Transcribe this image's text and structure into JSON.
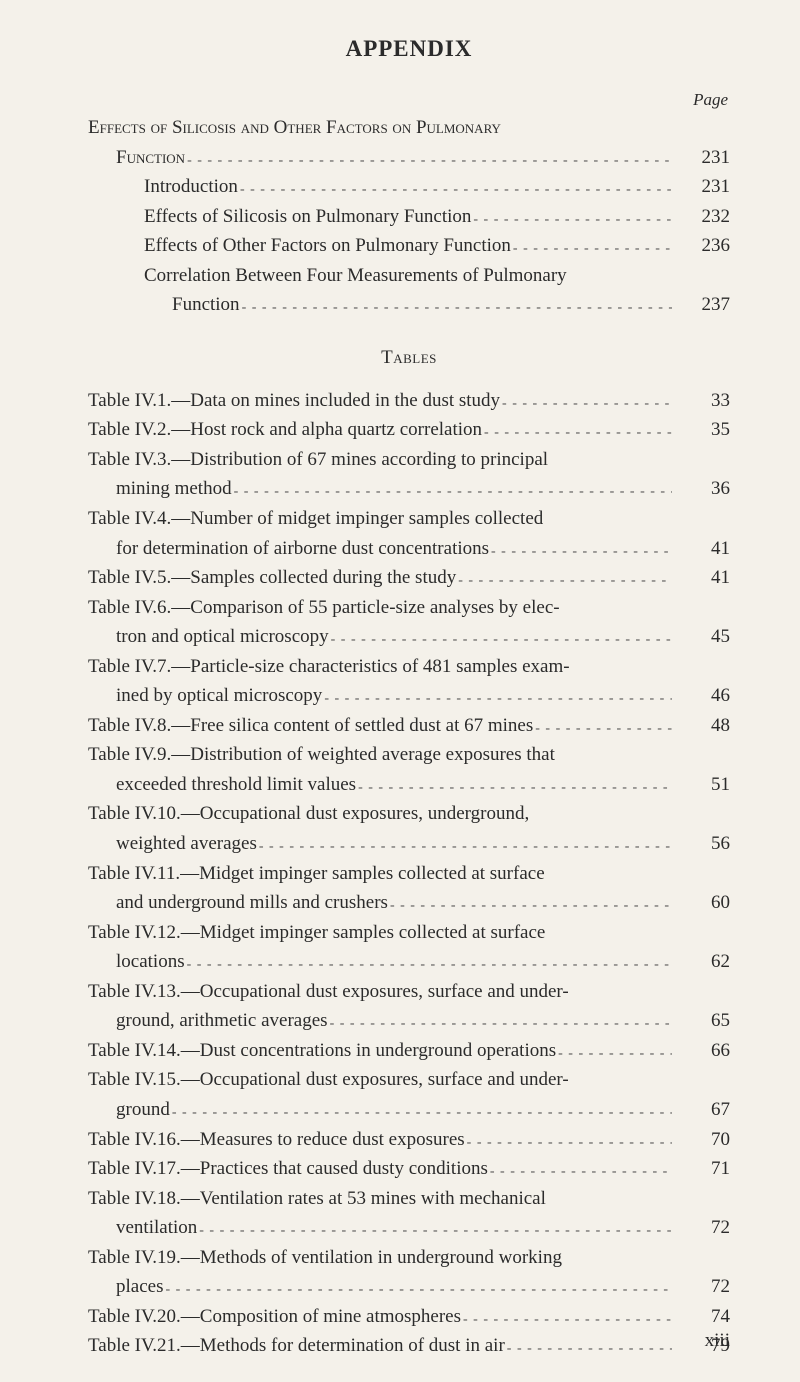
{
  "title": "APPENDIX",
  "pageLabel": "Page",
  "section1": {
    "heading": "Effects of Silicosis and Other Factors on Pulmonary",
    "items": [
      {
        "label": "Function",
        "page": "231",
        "indent": 1,
        "sc": true
      },
      {
        "label": "Introduction",
        "page": "231",
        "indent": 2
      },
      {
        "label": "Effects of Silicosis on Pulmonary Function",
        "page": "232",
        "indent": 2
      },
      {
        "label": "Effects of Other Factors on Pulmonary Function",
        "page": "236",
        "indent": 2
      },
      {
        "labelA": "Correlation Between Four Measurements of Pulmonary",
        "labelB": "Function",
        "page": "237",
        "indentA": 2,
        "indentB": 3
      }
    ]
  },
  "tablesHeading": "Tables",
  "tables": [
    {
      "label": "Table IV.1.—Data on mines included in the dust study",
      "page": "33"
    },
    {
      "label": "Table IV.2.—Host rock and alpha quartz correlation",
      "page": "35"
    },
    {
      "labelA": "Table IV.3.—Distribution of 67 mines according to principal",
      "labelB": "mining method",
      "page": "36"
    },
    {
      "labelA": "Table IV.4.—Number of midget impinger samples collected",
      "labelB": "for determination of airborne dust concentrations",
      "page": "41"
    },
    {
      "label": "Table IV.5.—Samples collected during the study",
      "page": "41"
    },
    {
      "labelA": "Table IV.6.—Comparison of 55 particle-size analyses by elec-",
      "labelB": "tron and optical microscopy",
      "page": "45"
    },
    {
      "labelA": "Table IV.7.—Particle-size characteristics of 481 samples exam-",
      "labelB": "ined by optical microscopy",
      "page": "46"
    },
    {
      "label": "Table IV.8.—Free silica content of settled dust at 67 mines",
      "page": "48"
    },
    {
      "labelA": "Table IV.9.—Distribution of weighted average exposures that",
      "labelB": "exceeded threshold limit values",
      "page": "51"
    },
    {
      "labelA": "Table IV.10.—Occupational dust exposures, underground,",
      "labelB": "weighted averages",
      "page": "56"
    },
    {
      "labelA": "Table IV.11.—Midget impinger samples collected at surface",
      "labelB": "and underground mills and crushers",
      "page": "60"
    },
    {
      "labelA": "Table IV.12.—Midget impinger samples collected at surface",
      "labelB": "locations",
      "page": "62"
    },
    {
      "labelA": "Table IV.13.—Occupational dust exposures, surface and under-",
      "labelB": "ground, arithmetic averages",
      "page": "65"
    },
    {
      "label": "Table IV.14.—Dust concentrations in underground operations",
      "page": "66"
    },
    {
      "labelA": "Table IV.15.—Occupational dust exposures, surface and under-",
      "labelB": "ground",
      "page": "67"
    },
    {
      "label": "Table IV.16.—Measures to reduce dust exposures",
      "page": "70"
    },
    {
      "label": "Table IV.17.—Practices that caused dusty conditions",
      "page": "71"
    },
    {
      "labelA": "Table IV.18.—Ventilation rates at 53 mines with mechanical",
      "labelB": "ventilation",
      "page": "72"
    },
    {
      "labelA": "Table IV.19.—Methods of ventilation in underground working",
      "labelB": "places",
      "page": "72"
    },
    {
      "label": "Table IV.20.—Composition of mine atmospheres",
      "page": "74"
    },
    {
      "label": "Table IV.21.—Methods for determination of dust in air",
      "page": "79"
    }
  ],
  "folio": "xiii"
}
